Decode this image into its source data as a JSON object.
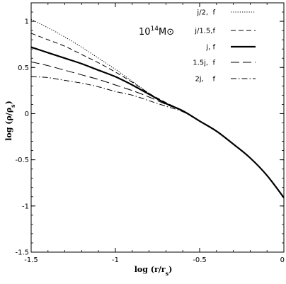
{
  "chart_data": {
    "type": "line",
    "xlabel": "log (r/r_s)",
    "ylabel": "log (ρ/ρ_s)",
    "xlim": [
      -1.5,
      0
    ],
    "ylim": [
      -1.5,
      1.2
    ],
    "xticks": [
      -1.5,
      -1,
      -0.5,
      0
    ],
    "xtick_labels": [
      "-1.5",
      "-1",
      "-0.5",
      "0"
    ],
    "yticks": [
      -1.5,
      -1,
      -0.5,
      0,
      0.5,
      1
    ],
    "ytick_labels": [
      "-1.5",
      "-1",
      "-0.5",
      "0",
      "0.5",
      "1"
    ],
    "grid": false,
    "legend_position": "top-right",
    "annotation": {
      "text": "10",
      "superscript": "14",
      "suffix": "M⊙"
    },
    "series": [
      {
        "name": "j/2,  f",
        "style": "dotted",
        "x": [
          -1.5,
          -1.4,
          -1.3,
          -1.2,
          -1.1,
          -1.0,
          -0.9,
          -0.8,
          -0.7,
          -0.6,
          -0.5,
          -0.4,
          -0.3,
          -0.2,
          -0.1,
          0.0
        ],
        "y": [
          1.02,
          0.93,
          0.83,
          0.72,
          0.6,
          0.48,
          0.35,
          0.22,
          0.11,
          0.03,
          -0.08,
          -0.19,
          -0.33,
          -0.48,
          -0.67,
          -0.91
        ]
      },
      {
        "name": "j/1.5,f",
        "style": "dashed",
        "x": [
          -1.5,
          -1.4,
          -1.3,
          -1.2,
          -1.1,
          -1.0,
          -0.9,
          -0.8,
          -0.7,
          -0.6,
          -0.5,
          -0.4,
          -0.3,
          -0.2,
          -0.1,
          0.0
        ],
        "y": [
          0.87,
          0.8,
          0.73,
          0.64,
          0.55,
          0.45,
          0.34,
          0.22,
          0.12,
          0.03,
          -0.08,
          -0.19,
          -0.33,
          -0.48,
          -0.67,
          -0.91
        ]
      },
      {
        "name": "j, f",
        "style": "solid-bold",
        "x": [
          -1.5,
          -1.4,
          -1.3,
          -1.2,
          -1.1,
          -1.0,
          -0.9,
          -0.8,
          -0.7,
          -0.6,
          -0.5,
          -0.4,
          -0.3,
          -0.2,
          -0.1,
          0.0
        ],
        "y": [
          0.72,
          0.66,
          0.6,
          0.54,
          0.47,
          0.4,
          0.31,
          0.21,
          0.11,
          0.03,
          -0.08,
          -0.19,
          -0.33,
          -0.48,
          -0.67,
          -0.91
        ]
      },
      {
        "name": "1.5j,  f",
        "style": "long-dash",
        "x": [
          -1.5,
          -1.4,
          -1.3,
          -1.2,
          -1.1,
          -1.0,
          -0.9,
          -0.8,
          -0.7,
          -0.6,
          -0.5,
          -0.4,
          -0.3,
          -0.2,
          -0.1,
          0.0
        ],
        "y": [
          0.56,
          0.52,
          0.47,
          0.42,
          0.37,
          0.31,
          0.25,
          0.18,
          0.1,
          0.03,
          -0.08,
          -0.19,
          -0.33,
          -0.48,
          -0.67,
          -0.91
        ]
      },
      {
        "name": "2j,    f",
        "style": "dash-dot",
        "x": [
          -1.5,
          -1.4,
          -1.3,
          -1.2,
          -1.1,
          -1.0,
          -0.9,
          -0.8,
          -0.7,
          -0.6,
          -0.5,
          -0.4,
          -0.3,
          -0.2,
          -0.1,
          0.0
        ],
        "y": [
          0.4,
          0.39,
          0.36,
          0.33,
          0.29,
          0.24,
          0.2,
          0.14,
          0.08,
          0.02,
          -0.08,
          -0.19,
          -0.33,
          -0.48,
          -0.67,
          -0.91
        ]
      }
    ]
  }
}
